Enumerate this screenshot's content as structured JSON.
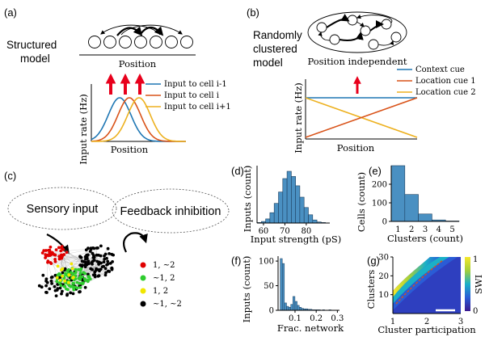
{
  "colors": {
    "blue": "#1f77b4",
    "orange": "#d95319",
    "yellow": "#edb120",
    "red_arrow": "#e8001c",
    "bar": "#4a90c2",
    "red_dot": "#e00000",
    "green_dot": "#2ecc2e",
    "yellow_dot": "#f1e600",
    "black_dot": "#000000"
  },
  "panel_a": {
    "tag": "(a)",
    "title_line1": "Structured",
    "title_line2": "model",
    "position_label": "Position",
    "ylabel": "Input rate (Hz)",
    "xlabel": "Position",
    "legend": [
      "Input to cell i-1",
      "Input to cell i",
      "Input to cell i+1"
    ]
  },
  "panel_b": {
    "tag": "(b)",
    "title_line1": "Randomly",
    "title_line2": "clustered",
    "title_line3": "model",
    "position_independent": "Position independent",
    "ylabel": "Input rate (Hz)",
    "xlabel": "Position",
    "legend": [
      "Context cue",
      "Location cue 1",
      "Location cue 2"
    ]
  },
  "panel_c": {
    "tag": "(c)",
    "sensory": "Sensory input",
    "feedback": "Feedback inhibition",
    "legend": [
      "1, ~2",
      "~1, 2",
      "1, 2",
      "~1, ~2"
    ]
  },
  "chart_data": [
    {
      "panel": "(d)",
      "type": "bar",
      "xlabel": "Input strength (pS)",
      "ylabel": "Inputs (count)",
      "xticks": [
        60,
        70,
        80
      ],
      "xlim": [
        57,
        91
      ],
      "ylim": [
        0,
        1
      ],
      "bin_edges": [
        57,
        59,
        61,
        63,
        65,
        67,
        69,
        71,
        73,
        75,
        77,
        79,
        81,
        83,
        85,
        87,
        89
      ],
      "values": [
        0.01,
        0.03,
        0.08,
        0.2,
        0.38,
        0.6,
        0.86,
        1.0,
        0.9,
        0.72,
        0.5,
        0.3,
        0.16,
        0.06,
        0.02,
        0.01
      ]
    },
    {
      "panel": "(e)",
      "type": "bar",
      "xlabel": "Clusters (count)",
      "ylabel": "Cells (count)",
      "xticks": [
        1,
        2,
        3,
        4,
        5
      ],
      "yticks": [
        0,
        100,
        200
      ],
      "xlim": [
        0.5,
        5.5
      ],
      "ylim": [
        0,
        300
      ],
      "categories": [
        1,
        2,
        3,
        4,
        5
      ],
      "values": [
        300,
        145,
        40,
        8,
        2
      ]
    },
    {
      "panel": "(f)",
      "type": "bar",
      "xlabel": "Frac. network",
      "ylabel": "Inputs (count)",
      "xticks": [
        0.1,
        0.2,
        0.3
      ],
      "yticks": [
        0,
        50,
        100
      ],
      "xlim": [
        0.02,
        0.31
      ],
      "ylim": [
        0,
        110
      ],
      "bin_edges": [
        0.03,
        0.04,
        0.05,
        0.06,
        0.07,
        0.08,
        0.09,
        0.1,
        0.11,
        0.12,
        0.13,
        0.14,
        0.15,
        0.16,
        0.17,
        0.18,
        0.19,
        0.2,
        0.21,
        0.22,
        0.23,
        0.24,
        0.25,
        0.26,
        0.27,
        0.28,
        0.29,
        0.3
      ],
      "values": [
        105,
        95,
        15,
        8,
        6,
        12,
        28,
        18,
        10,
        6,
        4,
        3,
        3,
        2,
        2,
        1,
        1,
        1,
        1,
        0,
        1,
        0,
        0,
        1,
        0,
        0,
        0
      ]
    },
    {
      "panel": "(g)",
      "type": "heatmap",
      "xlabel": "Cluster participation",
      "ylabel": "Clusters",
      "colorbar_label": "SWI",
      "xticks": [
        1,
        2,
        3
      ],
      "yticks": [
        10,
        20,
        30
      ],
      "colorbar_ticks": [
        0,
        1
      ],
      "xlim": [
        1,
        3
      ],
      "ylim": [
        0,
        30
      ]
    }
  ]
}
